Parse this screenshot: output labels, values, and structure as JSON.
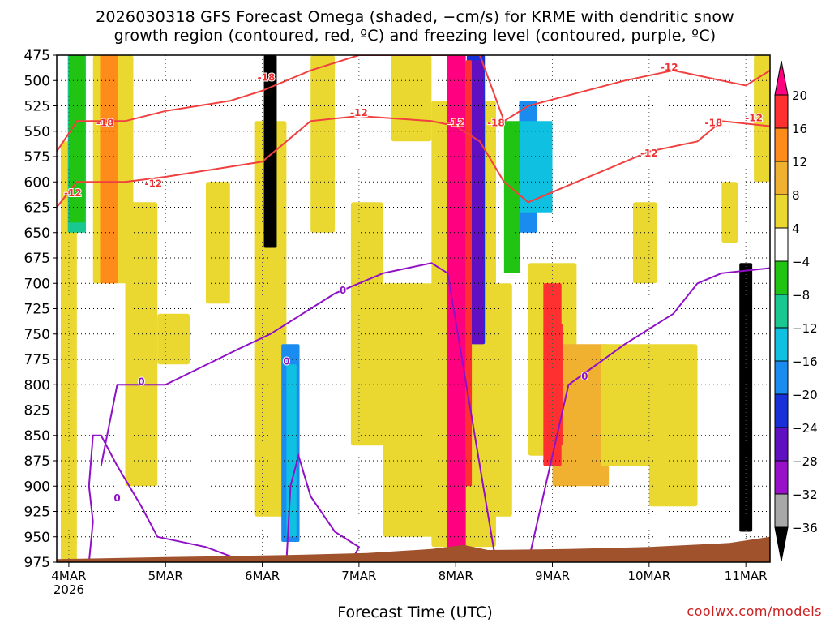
{
  "title_line1": "2026030318 GFS Forecast Omega (shaded, −cm/s) for KRME with dendritic snow",
  "title_line2": "growth region (contoured, red, ºC) and freezing level (contoured, purple, ºC)",
  "xlabel": "Forecast Time (UTC)",
  "credit": "coolwx.com/models",
  "chart_data": {
    "type": "heatmap",
    "title": "2026030318 GFS Forecast Omega (shaded, −cm/s) for KRME with dendritic snow growth region (contoured, red, ºC) and freezing level (contoured, purple, ºC)",
    "xlabel": "Forecast Time (UTC)",
    "ylabel": "",
    "y_ticks": [
      475,
      500,
      525,
      550,
      575,
      600,
      625,
      650,
      675,
      700,
      725,
      750,
      775,
      800,
      825,
      850,
      875,
      900,
      925,
      950,
      975
    ],
    "ylim": [
      975,
      475
    ],
    "x_ticks": [
      {
        "label": "4MAR",
        "sub": "2026",
        "t": 6
      },
      {
        "label": "5MAR",
        "sub": "",
        "t": 30
      },
      {
        "label": "6MAR",
        "sub": "",
        "t": 54
      },
      {
        "label": "7MAR",
        "sub": "",
        "t": 78
      },
      {
        "label": "8MAR",
        "sub": "",
        "t": 102
      },
      {
        "label": "9MAR",
        "sub": "",
        "t": 126
      },
      {
        "label": "10MAR",
        "sub": "",
        "t": 150
      },
      {
        "label": "11MAR",
        "sub": "",
        "t": 174
      }
    ],
    "xlim": [
      3,
      180
    ],
    "grid": true,
    "colorbar": {
      "labels": [
        "20",
        "16",
        "12",
        "8",
        "4",
        "−4",
        "−8",
        "−12",
        "−16",
        "−20",
        "−24",
        "−28",
        "−32",
        "−36"
      ],
      "colors": [
        "#ff0080",
        "#ff3030",
        "#ff8c1a",
        "#f0b030",
        "#ead830",
        "#ffffff",
        "#22c414",
        "#18c890",
        "#10c0e0",
        "#1a8cf0",
        "#1830d8",
        "#6010c0",
        "#9810c8",
        "#a8a8a8",
        "#000000"
      ]
    },
    "contour_labels": {
      "red": [
        "-12",
        "-18",
        "-18",
        "-12",
        "-12",
        "-12",
        "-18",
        "-12",
        "-18",
        "-12",
        "-12"
      ],
      "purple": [
        "0",
        "0",
        "0",
        "0",
        "0",
        "0"
      ]
    },
    "omega_features": [
      {
        "t": 8,
        "p_top": 475,
        "p_bot": 650,
        "value": -8
      },
      {
        "t": 16,
        "p_top": 475,
        "p_bot": 700,
        "value": 12
      },
      {
        "t": 56,
        "p_top": 475,
        "p_bot": 665,
        "value": -36
      },
      {
        "t": 61,
        "p_top": 760,
        "p_bot": 955,
        "value": -16
      },
      {
        "t": 102,
        "p_top": 475,
        "p_bot": 970,
        "value": 20
      },
      {
        "t": 107,
        "p_top": 475,
        "p_bot": 760,
        "value": -20
      },
      {
        "t": 120,
        "p_top": 520,
        "p_bot": 650,
        "value": -16
      },
      {
        "t": 126,
        "p_top": 700,
        "p_bot": 880,
        "value": 16
      },
      {
        "t": 174,
        "p_top": 680,
        "p_bot": 945,
        "value": -36
      }
    ],
    "freezing_level_0C": [
      {
        "t": 14,
        "p": 880
      },
      {
        "t": 18,
        "p": 800
      },
      {
        "t": 30,
        "p": 800
      },
      {
        "t": 48,
        "p": 765
      },
      {
        "t": 56,
        "p": 750
      },
      {
        "t": 72,
        "p": 710
      },
      {
        "t": 84,
        "p": 690
      },
      {
        "t": 96,
        "p": 680
      },
      {
        "t": 100,
        "p": 690
      },
      {
        "t": 112,
        "p": 975
      }
    ],
    "freezing_level_0C_late": [
      {
        "t": 120,
        "p": 975
      },
      {
        "t": 126,
        "p": 870
      },
      {
        "t": 130,
        "p": 800
      },
      {
        "t": 144,
        "p": 760
      },
      {
        "t": 156,
        "p": 730
      },
      {
        "t": 162,
        "p": 700
      },
      {
        "t": 168,
        "p": 690
      },
      {
        "t": 180,
        "p": 685
      }
    ],
    "dgz_minus12_lower": [
      {
        "t": 3,
        "p": 625
      },
      {
        "t": 8,
        "p": 600
      },
      {
        "t": 20,
        "p": 600
      },
      {
        "t": 30,
        "p": 595
      },
      {
        "t": 54,
        "p": 580
      },
      {
        "t": 66,
        "p": 540
      },
      {
        "t": 78,
        "p": 535
      },
      {
        "t": 96,
        "p": 540
      },
      {
        "t": 102,
        "p": 545
      },
      {
        "t": 108,
        "p": 560
      },
      {
        "t": 114,
        "p": 600
      },
      {
        "t": 120,
        "p": 620
      },
      {
        "t": 144,
        "p": 580
      },
      {
        "t": 150,
        "p": 570
      },
      {
        "t": 162,
        "p": 560
      },
      {
        "t": 168,
        "p": 540
      },
      {
        "t": 180,
        "p": 545
      }
    ],
    "dgz_minus18_upper": [
      {
        "t": 3,
        "p": 570
      },
      {
        "t": 8,
        "p": 540
      },
      {
        "t": 20,
        "p": 540
      },
      {
        "t": 30,
        "p": 530
      },
      {
        "t": 46,
        "p": 520
      },
      {
        "t": 54,
        "p": 510
      },
      {
        "t": 66,
        "p": 490
      },
      {
        "t": 78,
        "p": 475
      },
      {
        "t": 108,
        "p": 475
      },
      {
        "t": 114,
        "p": 540
      },
      {
        "t": 120,
        "p": 525
      },
      {
        "t": 144,
        "p": 500
      },
      {
        "t": 156,
        "p": 490
      },
      {
        "t": 162,
        "p": 495
      },
      {
        "t": 168,
        "p": 500
      },
      {
        "t": 174,
        "p": 505
      },
      {
        "t": 180,
        "p": 490
      }
    ]
  }
}
